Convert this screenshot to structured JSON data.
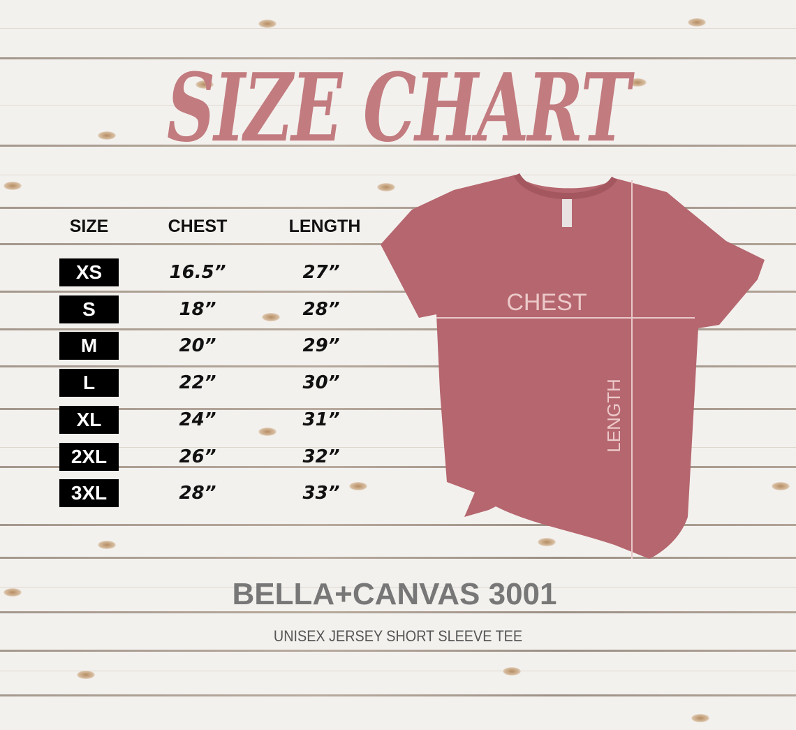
{
  "title": "SIZE CHART",
  "table": {
    "headers": [
      "SIZE",
      "CHEST",
      "LENGTH"
    ],
    "rows": [
      {
        "size": "XS",
        "chest": "16.5”",
        "length": "27”"
      },
      {
        "size": "S",
        "chest": "18”",
        "length": "28”"
      },
      {
        "size": "M",
        "chest": "20”",
        "length": "29”"
      },
      {
        "size": "L",
        "chest": "22”",
        "length": "30”"
      },
      {
        "size": "XL",
        "chest": "24”",
        "length": "31”"
      },
      {
        "size": "2XL",
        "chest": "26”",
        "length": "32”"
      },
      {
        "size": "3XL",
        "chest": "28”",
        "length": "33”"
      }
    ]
  },
  "shirt": {
    "chest_label": "CHEST",
    "length_label": "LENGTH",
    "color": "#b5666e"
  },
  "brand": "BELLA+CANVAS 3001",
  "subtitle": "UNISEX JERSEY SHORT SLEEVE TEE",
  "colors": {
    "title": "#c27b7f",
    "badge": "#000000",
    "brand": "#777777"
  }
}
